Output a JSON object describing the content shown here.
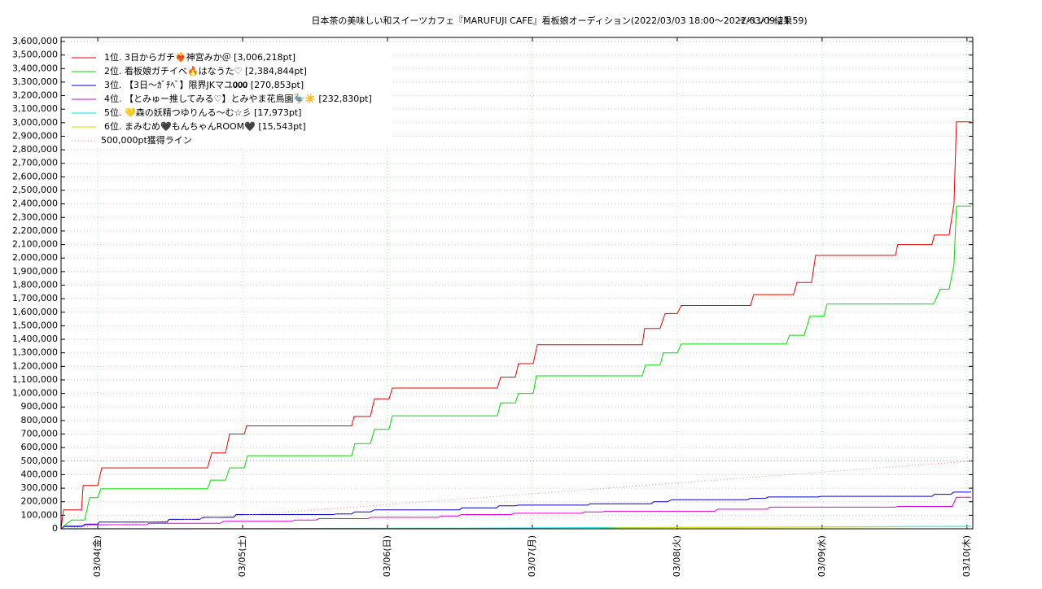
{
  "chart_data": {
    "type": "line",
    "title": "日本茶の美味しい和スイーツカフェ『MARUFUJI CAFE』看板娘オーディション(2022/03/03 18:00〜2022/03/09 21:59)",
    "subtitle": "イベント結果",
    "xlim": [
      3.747,
      10.04
    ],
    "xticks": [
      {
        "value": 4,
        "label": "03/04(金)"
      },
      {
        "value": 5,
        "label": "03/05(土)"
      },
      {
        "value": 6,
        "label": "03/06(日)"
      },
      {
        "value": 7,
        "label": "03/07(月)"
      },
      {
        "value": 8,
        "label": "03/08(火)"
      },
      {
        "value": 9,
        "label": "03/09(水)"
      },
      {
        "value": 10,
        "label": "03/10(木)"
      }
    ],
    "ylim": [
      0,
      3630000
    ],
    "yticks": [
      0,
      {
        "value": 100000,
        "label": "100,000"
      },
      {
        "value": 200000,
        "label": "200,000"
      },
      {
        "value": 300000,
        "label": "300,000"
      },
      {
        "value": 400000,
        "label": "400,000"
      },
      {
        "value": 500000,
        "label": "500,000"
      },
      {
        "value": 600000,
        "label": "600,000"
      },
      {
        "value": 700000,
        "label": "700,000"
      },
      {
        "value": 800000,
        "label": "800,000"
      },
      {
        "value": 900000,
        "label": "900,000"
      },
      {
        "value": 1000000,
        "label": "1,000,000"
      },
      {
        "value": 1100000,
        "label": "1,100,000"
      },
      {
        "value": 1200000,
        "label": "1,200,000"
      },
      {
        "value": 1300000,
        "label": "1,300,000"
      },
      {
        "value": 1400000,
        "label": "1,400,000"
      },
      {
        "value": 1500000,
        "label": "1,500,000"
      },
      {
        "value": 1600000,
        "label": "1,600,000"
      },
      {
        "value": 1700000,
        "label": "1,700,000"
      },
      {
        "value": 1800000,
        "label": "1,800,000"
      },
      {
        "value": 1900000,
        "label": "1,900,000"
      },
      {
        "value": 2000000,
        "label": "2,000,000"
      },
      {
        "value": 2100000,
        "label": "2,100,000"
      },
      {
        "value": 2200000,
        "label": "2,200,000"
      },
      {
        "value": 2300000,
        "label": "2,300,000"
      },
      {
        "value": 2400000,
        "label": "2,400,000"
      },
      {
        "value": 2500000,
        "label": "2,500,000"
      },
      {
        "value": 2600000,
        "label": "2,600,000"
      },
      {
        "value": 2700000,
        "label": "2,700,000"
      },
      {
        "value": 2800000,
        "label": "2,800,000"
      },
      {
        "value": 2900000,
        "label": "2,900,000"
      },
      {
        "value": 3000000,
        "label": "3,000,000"
      },
      {
        "value": 3100000,
        "label": "3,100,000"
      },
      {
        "value": 3200000,
        "label": "3,200,000"
      },
      {
        "value": 3300000,
        "label": "3,300,000"
      },
      {
        "value": 3400000,
        "label": "3,400,000"
      },
      {
        "value": 3500000,
        "label": "3,500,000"
      },
      {
        "value": 3600000,
        "label": "3,600,000"
      }
    ],
    "grid": true,
    "legend": "upper-left",
    "reference_line": {
      "value": 500000,
      "color": "#e89090"
    },
    "series": [
      {
        "name": "1位. 3日からガチ❤‍🔥神宮みか＠ [3,006,218pt]",
        "color": "#ee0000",
        "x": [
          3.747,
          3.764,
          3.888,
          3.899,
          4.0,
          4.028,
          4.758,
          4.787,
          4.882,
          4.91,
          5.011,
          5.028,
          5.753,
          5.77,
          5.882,
          5.91,
          6.011,
          6.034,
          6.758,
          6.781,
          6.882,
          6.904,
          7.006,
          7.034,
          7.758,
          7.775,
          7.882,
          7.916,
          8.0,
          8.028,
          8.506,
          8.528,
          8.803,
          8.826,
          8.927,
          8.955,
          9.506,
          9.522,
          9.758,
          9.775,
          9.876,
          9.91,
          9.927,
          10.028
        ],
        "values": [
          0,
          140000,
          140000,
          320000,
          320000,
          450000,
          450000,
          560000,
          560000,
          700000,
          700000,
          760000,
          760000,
          830000,
          830000,
          960000,
          960000,
          1040000,
          1040000,
          1120000,
          1120000,
          1220000,
          1220000,
          1360000,
          1360000,
          1480000,
          1480000,
          1590000,
          1590000,
          1650000,
          1650000,
          1730000,
          1730000,
          1820000,
          1820000,
          2020000,
          2020000,
          2100000,
          2100000,
          2170000,
          2170000,
          2400000,
          3006218,
          3006218
        ]
      },
      {
        "name": "2位. 看板娘ガチイベ🔥はなうた♡ [2,384,844pt]",
        "color": "#00dd00",
        "x": [
          3.747,
          3.764,
          3.82,
          3.91,
          3.944,
          4.0,
          4.022,
          4.758,
          4.781,
          4.882,
          4.91,
          5.011,
          5.034,
          5.753,
          5.775,
          5.882,
          5.91,
          6.011,
          6.034,
          6.758,
          6.781,
          6.882,
          6.904,
          7.006,
          7.028,
          7.758,
          7.781,
          7.882,
          7.904,
          8.0,
          8.028,
          8.753,
          8.775,
          8.876,
          8.916,
          9.011,
          9.034,
          9.77,
          9.815,
          9.876,
          9.91,
          9.927,
          10.028
        ],
        "values": [
          0,
          20000,
          65000,
          65000,
          230000,
          230000,
          295000,
          295000,
          360000,
          360000,
          450000,
          450000,
          540000,
          540000,
          630000,
          630000,
          735000,
          735000,
          835000,
          835000,
          930000,
          930000,
          1000000,
          1000000,
          1130000,
          1130000,
          1210000,
          1210000,
          1300000,
          1300000,
          1365000,
          1365000,
          1430000,
          1430000,
          1570000,
          1570000,
          1660000,
          1660000,
          1770000,
          1770000,
          1950000,
          2384844,
          2384844
        ]
      },
      {
        "name": "3位. 【3日〜ｶﾞﾁﾍﾞ】限界JKマユ𝟎𝟎𝟎 [270,853pt]",
        "color": "#0000cc",
        "x": [
          3.747,
          3.775,
          3.888,
          3.916,
          4.0,
          4.011,
          4.478,
          4.494,
          4.702,
          4.73,
          4.938,
          4.955,
          5.629,
          5.646,
          5.753,
          5.775,
          5.882,
          5.91,
          6.5,
          6.511,
          6.753,
          6.77,
          6.882,
          6.904,
          7.382,
          7.399,
          7.82,
          7.837,
          7.933,
          7.961,
          8.483,
          8.506,
          8.607,
          8.629,
          8.972,
          8.989,
          9.758,
          9.775,
          9.888,
          9.91,
          10.028
        ],
        "values": [
          0,
          20000,
          20000,
          35000,
          35000,
          50000,
          50000,
          70000,
          70000,
          85000,
          85000,
          105000,
          105000,
          110000,
          110000,
          125000,
          125000,
          140000,
          140000,
          155000,
          155000,
          170000,
          170000,
          175000,
          175000,
          185000,
          185000,
          200000,
          200000,
          215000,
          215000,
          225000,
          225000,
          235000,
          235000,
          240000,
          240000,
          255000,
          255000,
          270853,
          270853
        ]
      },
      {
        "name": "4位. 【とみゅー推してみる♡】とみやま花鳥園🦤☀️ [232,830pt]",
        "color": "#dd00dd",
        "x": [
          3.747,
          3.764,
          3.888,
          3.916,
          4.337,
          4.354,
          4.843,
          4.871,
          5.337,
          5.36,
          5.506,
          5.528,
          5.865,
          5.888,
          6.348,
          6.371,
          6.489,
          6.511,
          6.854,
          6.876,
          7.343,
          7.36,
          7.483,
          7.506,
          8.258,
          8.281,
          8.618,
          8.64,
          9.506,
          9.522,
          9.899,
          9.927,
          10.028
        ],
        "values": [
          0,
          15000,
          15000,
          30000,
          30000,
          40000,
          40000,
          55000,
          55000,
          65000,
          65000,
          75000,
          75000,
          85000,
          85000,
          95000,
          95000,
          105000,
          105000,
          115000,
          115000,
          125000,
          125000,
          130000,
          130000,
          145000,
          145000,
          160000,
          160000,
          165000,
          165000,
          232830,
          232830
        ]
      },
      {
        "name": "5位. 💛森の妖精つゆりんる〜む☆彡 [17,973pt]",
        "color": "#00dddd",
        "x": [
          3.747,
          6.5,
          8.0,
          9.0,
          10.028
        ],
        "values": [
          0,
          5000,
          10000,
          14000,
          17973
        ]
      },
      {
        "name": "6位. まみむめ🖤もんちゃんROOM🖤 [15,543pt]",
        "color": "#dddd00",
        "x": [
          3.747,
          7.4,
          7.6,
          9.0,
          10.028
        ],
        "values": [
          0,
          0,
          8000,
          12000,
          15543
        ]
      },
      {
        "name": "500,000pt獲得ライン",
        "color": "#e89090",
        "dash": true,
        "x": [
          3.747,
          10.028
        ],
        "values": [
          0,
          500000
        ]
      }
    ]
  }
}
